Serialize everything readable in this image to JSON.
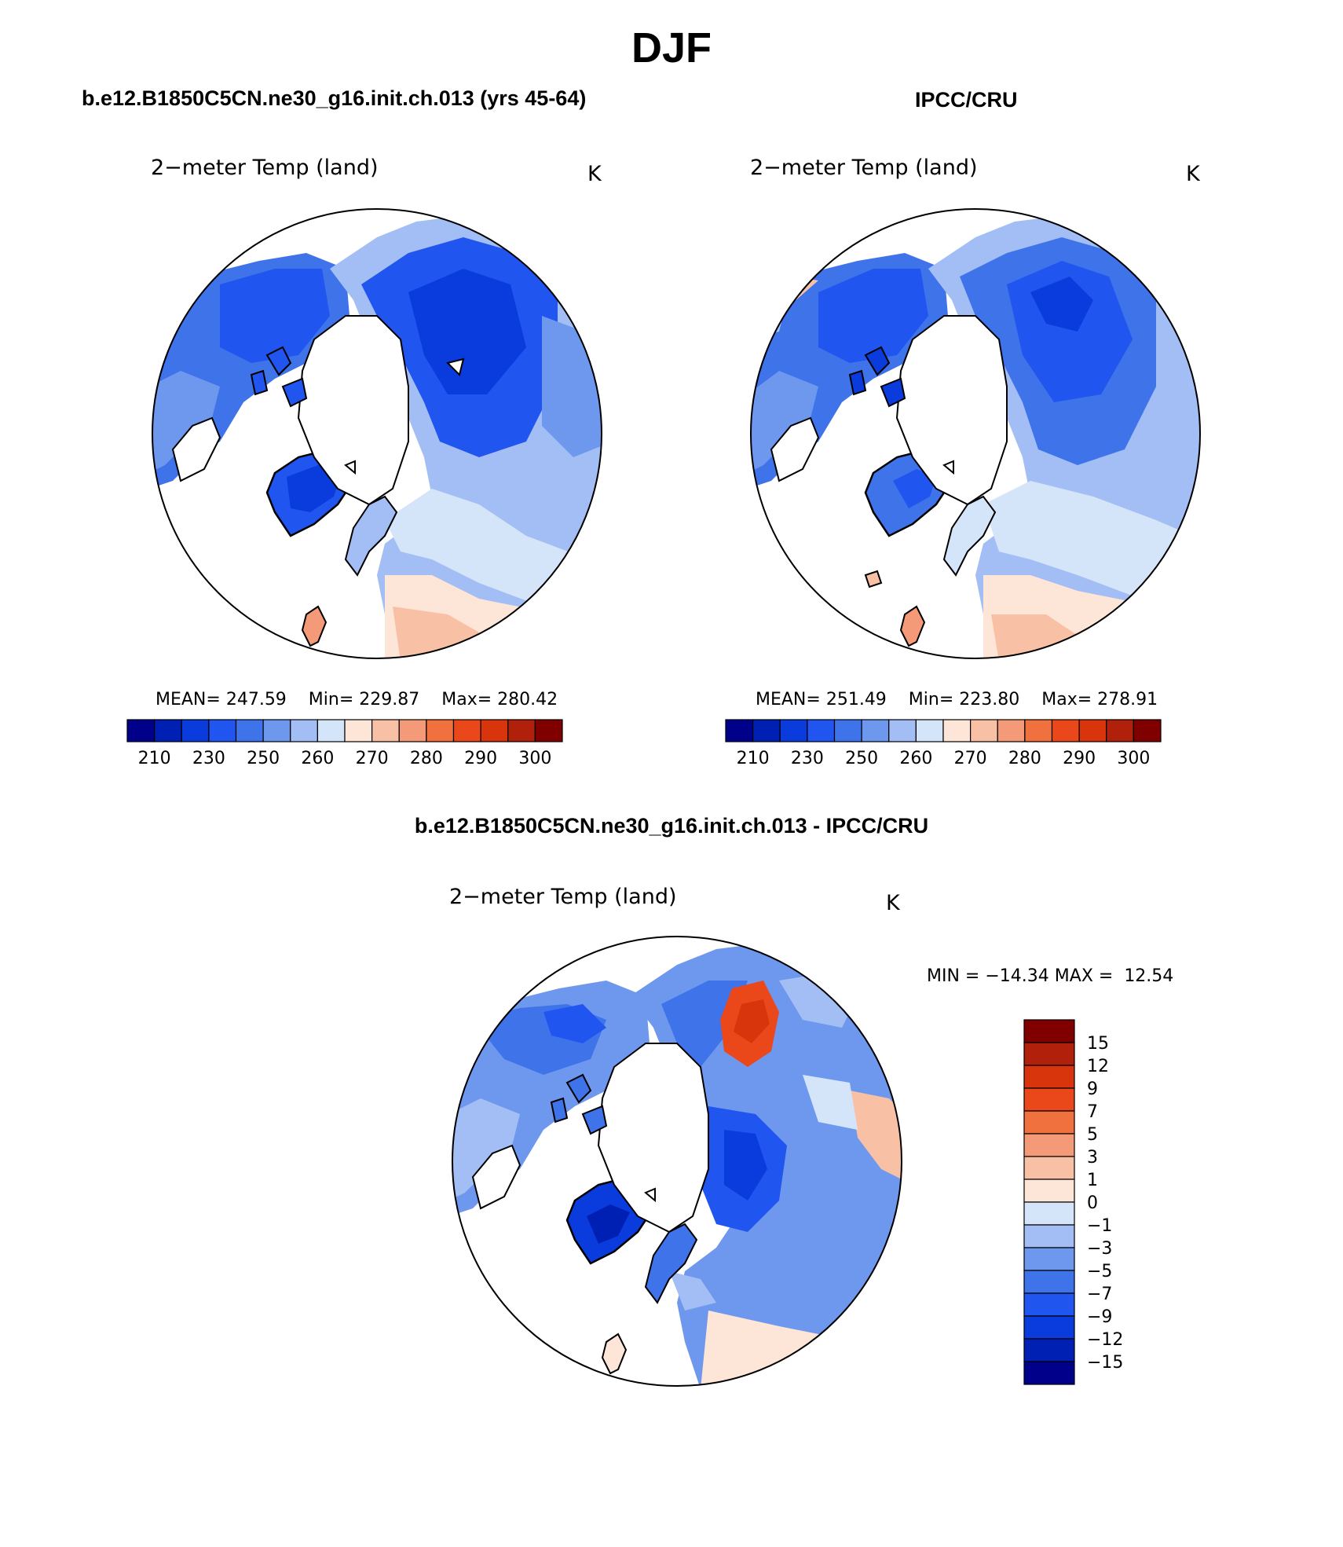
{
  "figure": {
    "title": "DJF",
    "model_title": "b.e12.B1850C5CN.ne30_g16.init.ch.013 (yrs 45-64)",
    "obs_title": "IPCC/CRU",
    "diff_title": "b.e12.B1850C5CN.ne30_g16.init.ch.013 - IPCC/CRU"
  },
  "chart_data": [
    {
      "type": "heatmap",
      "projection": "north polar stereographic",
      "title": "2−meter Temp (land)",
      "units": "K",
      "stats": {
        "mean_label": "MEAN=",
        "mean": "247.59",
        "min_label": "Min=",
        "min": "229.87",
        "max_label": "Max=",
        "max": "280.42"
      },
      "colorbar": {
        "orientation": "horizontal",
        "levels": [
          210,
          220,
          230,
          240,
          250,
          255,
          260,
          265,
          270,
          275,
          280,
          285,
          290,
          295,
          300
        ],
        "tick_labels": [
          "210",
          "230",
          "250",
          "260",
          "270",
          "280",
          "290",
          "300"
        ],
        "colors": [
          "#00008b",
          "#0020b4",
          "#0a3bdc",
          "#2055f0",
          "#3f73ea",
          "#6e97ee",
          "#a3bef4",
          "#d5e5f9",
          "#fde6d8",
          "#f8c0a4",
          "#f49a78",
          "#f0703e",
          "#ea481a",
          "#d8350c",
          "#b0200a",
          "#800000"
        ]
      }
    },
    {
      "type": "heatmap",
      "projection": "north polar stereographic",
      "title": "2−meter Temp (land)",
      "units": "K",
      "stats": {
        "mean_label": "MEAN=",
        "mean": "251.49",
        "min_label": "Min=",
        "min": "223.80",
        "max_label": "Max=",
        "max": "278.91"
      },
      "colorbar": {
        "orientation": "horizontal",
        "levels": [
          210,
          220,
          230,
          240,
          250,
          255,
          260,
          265,
          270,
          275,
          280,
          285,
          290,
          295,
          300
        ],
        "tick_labels": [
          "210",
          "230",
          "250",
          "260",
          "270",
          "280",
          "290",
          "300"
        ],
        "colors": [
          "#00008b",
          "#0020b4",
          "#0a3bdc",
          "#2055f0",
          "#3f73ea",
          "#6e97ee",
          "#a3bef4",
          "#d5e5f9",
          "#fde6d8",
          "#f8c0a4",
          "#f49a78",
          "#f0703e",
          "#ea481a",
          "#d8350c",
          "#b0200a",
          "#800000"
        ]
      }
    },
    {
      "type": "heatmap",
      "projection": "north polar stereographic",
      "title": "2−meter Temp (land)",
      "units": "K",
      "stats": {
        "min_label": "MIN =",
        "min": "−14.34",
        "max_label": "MAX =",
        "max": "12.54"
      },
      "colorbar": {
        "orientation": "vertical",
        "tick_labels": [
          "15",
          "12",
          "9",
          "7",
          "5",
          "3",
          "1",
          "0",
          "−1",
          "−3",
          "−5",
          "−7",
          "−9",
          "−12",
          "−15"
        ],
        "colors": [
          "#800000",
          "#b0200a",
          "#d8350c",
          "#ea481a",
          "#f0703e",
          "#f49a78",
          "#f8c0a4",
          "#fde6d8",
          "#d5e5f9",
          "#a3bef4",
          "#6e97ee",
          "#3f73ea",
          "#2055f0",
          "#0a3bdc",
          "#0020b4",
          "#00008b"
        ]
      }
    }
  ]
}
